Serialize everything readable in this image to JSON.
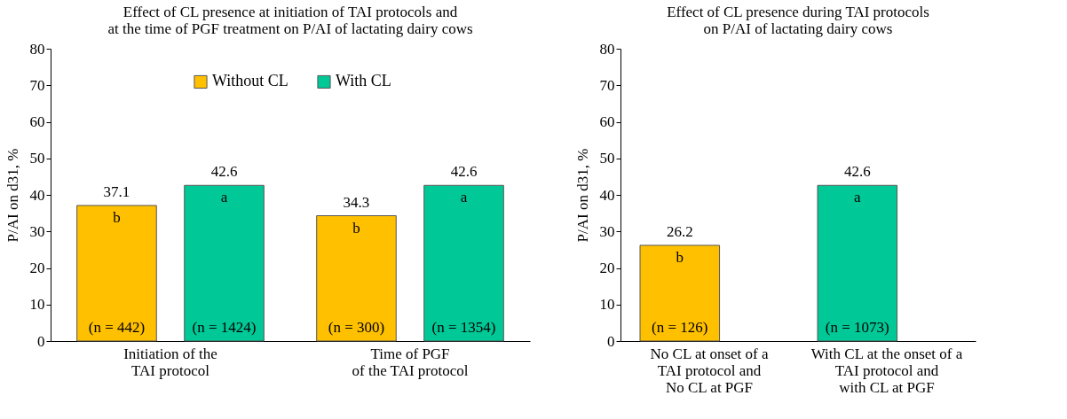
{
  "chart_data": [
    {
      "type": "bar",
      "title": "Effect of CL presence at initiation of TAI protocols and\nat the time of PGF treatment on P/AI of lactating dairy cows",
      "ylabel": "P/AI on d31, %",
      "categories": [
        "Initiation of the\nTAI protocol",
        "Time of PGF\nof the TAI protocol"
      ],
      "series": [
        {
          "name": "Without CL",
          "color": "#ffc000",
          "values": [
            37.1,
            34.3
          ]
        },
        {
          "name": "With CL",
          "color": "#00c896",
          "values": [
            42.6,
            42.6
          ]
        }
      ],
      "ylim": [
        0,
        80
      ],
      "yticks": [
        0,
        10,
        20,
        30,
        40,
        50,
        60,
        70,
        80
      ],
      "grid": false,
      "legend": "top",
      "data_labels": true,
      "annotations": [
        "b",
        "(n = 442)",
        "b",
        "(n = 300)",
        "a",
        "(n = 1424)",
        "a",
        "(n = 1354)"
      ]
    },
    {
      "type": "bar",
      "title": "Effect of CL presence during TAI protocols\non P/AI of lactating dairy cows",
      "ylabel": "P/AI on d31, %",
      "categories": [
        "No CL at onset of a\nTAI protocol and\nNo CL at PGF",
        "With CL at the onset of a\nTAI protocol and\nwith CL at PGF"
      ],
      "values": [
        26.2,
        42.6
      ],
      "colors": [
        "#ffc000",
        "#00c896"
      ],
      "ylim": [
        0,
        80
      ],
      "yticks": [
        0,
        10,
        20,
        30,
        40,
        50,
        60,
        70,
        80
      ],
      "grid": false,
      "data_labels": true,
      "annotations": [
        "b",
        "(n = 126)",
        "a",
        "(n = 1073)"
      ]
    }
  ]
}
